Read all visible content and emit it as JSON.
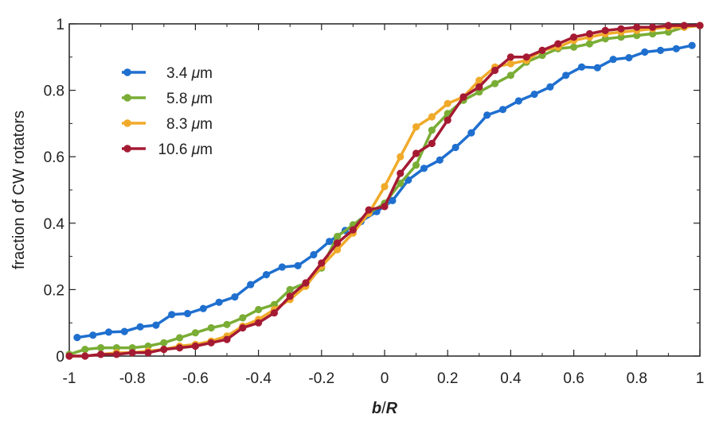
{
  "chart_data": {
    "type": "line",
    "title": "",
    "xlabel_main": "b",
    "xlabel_sep": "/",
    "xlabel_sub": "R",
    "ylabel": "fraction of CW rotators",
    "xlim": [
      -1,
      1
    ],
    "ylim": [
      0,
      1
    ],
    "x_ticks": [
      -1,
      -0.8,
      -0.6,
      -0.4,
      -0.2,
      0,
      0.2,
      0.4,
      0.6,
      0.8,
      1
    ],
    "x_tick_labels": [
      "-1",
      "-0.8",
      "-0.6",
      "-0.4",
      "-0.2",
      "0",
      "0.2",
      "0.4",
      "0.6",
      "0.8",
      "1"
    ],
    "y_ticks": [
      0,
      0.2,
      0.4,
      0.6,
      0.8,
      1
    ],
    "y_tick_labels": [
      "0",
      "0.2",
      "0.4",
      "0.6",
      "0.8",
      "1"
    ],
    "legend_position": "top-left",
    "series": [
      {
        "name": "3.4",
        "unit": "μm",
        "color": "#1f6fcf",
        "x": [
          -0.975,
          -0.925,
          -0.875,
          -0.825,
          -0.775,
          -0.725,
          -0.675,
          -0.625,
          -0.575,
          -0.525,
          -0.475,
          -0.425,
          -0.375,
          -0.325,
          -0.275,
          -0.225,
          -0.175,
          -0.125,
          -0.075,
          -0.025,
          0.025,
          0.075,
          0.125,
          0.175,
          0.225,
          0.275,
          0.325,
          0.375,
          0.425,
          0.475,
          0.525,
          0.575,
          0.625,
          0.675,
          0.725,
          0.775,
          0.825,
          0.875,
          0.925,
          0.975
        ],
        "values": [
          0.056,
          0.063,
          0.072,
          0.074,
          0.088,
          0.093,
          0.125,
          0.128,
          0.143,
          0.162,
          0.178,
          0.215,
          0.245,
          0.268,
          0.272,
          0.305,
          0.345,
          0.378,
          0.405,
          0.435,
          0.468,
          0.53,
          0.565,
          0.59,
          0.628,
          0.672,
          0.725,
          0.742,
          0.768,
          0.788,
          0.81,
          0.845,
          0.87,
          0.868,
          0.893,
          0.898,
          0.915,
          0.92,
          0.925,
          0.935
        ]
      },
      {
        "name": "5.8",
        "unit": "μm",
        "color": "#7aad35",
        "x": [
          -1.0,
          -0.95,
          -0.9,
          -0.85,
          -0.8,
          -0.75,
          -0.7,
          -0.65,
          -0.6,
          -0.55,
          -0.5,
          -0.45,
          -0.4,
          -0.35,
          -0.3,
          -0.25,
          -0.2,
          -0.15,
          -0.1,
          -0.05,
          0.0,
          0.05,
          0.1,
          0.15,
          0.2,
          0.25,
          0.3,
          0.35,
          0.4,
          0.45,
          0.5,
          0.55,
          0.6,
          0.65,
          0.7,
          0.75,
          0.8,
          0.85,
          0.9,
          0.95,
          1.0
        ],
        "values": [
          0.005,
          0.02,
          0.025,
          0.025,
          0.025,
          0.03,
          0.04,
          0.055,
          0.07,
          0.085,
          0.095,
          0.115,
          0.14,
          0.155,
          0.2,
          0.22,
          0.265,
          0.36,
          0.395,
          0.43,
          0.46,
          0.52,
          0.575,
          0.68,
          0.73,
          0.77,
          0.795,
          0.82,
          0.845,
          0.885,
          0.905,
          0.925,
          0.93,
          0.94,
          0.955,
          0.96,
          0.965,
          0.97,
          0.975,
          0.99,
          0.995
        ]
      },
      {
        "name": "8.3",
        "unit": "μm",
        "color": "#f0aa2a",
        "x": [
          -1.0,
          -0.95,
          -0.9,
          -0.85,
          -0.8,
          -0.75,
          -0.7,
          -0.65,
          -0.6,
          -0.55,
          -0.5,
          -0.45,
          -0.4,
          -0.35,
          -0.3,
          -0.25,
          -0.2,
          -0.15,
          -0.1,
          -0.05,
          0.0,
          0.05,
          0.1,
          0.15,
          0.2,
          0.25,
          0.3,
          0.35,
          0.4,
          0.45,
          0.5,
          0.55,
          0.6,
          0.65,
          0.7,
          0.75,
          0.8,
          0.85,
          0.9,
          0.95,
          1.0
        ],
        "values": [
          0.0,
          0.0,
          0.005,
          0.01,
          0.01,
          0.015,
          0.02,
          0.03,
          0.035,
          0.045,
          0.06,
          0.09,
          0.11,
          0.14,
          0.17,
          0.21,
          0.27,
          0.32,
          0.37,
          0.43,
          0.51,
          0.6,
          0.69,
          0.72,
          0.76,
          0.78,
          0.83,
          0.87,
          0.88,
          0.89,
          0.92,
          0.93,
          0.95,
          0.96,
          0.97,
          0.975,
          0.98,
          0.985,
          0.99,
          0.99,
          0.995
        ]
      },
      {
        "name": "10.6",
        "unit": "μm",
        "color": "#a51a33",
        "x": [
          -1.0,
          -0.95,
          -0.9,
          -0.85,
          -0.8,
          -0.75,
          -0.7,
          -0.65,
          -0.6,
          -0.55,
          -0.5,
          -0.45,
          -0.4,
          -0.35,
          -0.3,
          -0.25,
          -0.2,
          -0.15,
          -0.1,
          -0.05,
          0.0,
          0.05,
          0.1,
          0.15,
          0.2,
          0.25,
          0.3,
          0.35,
          0.4,
          0.45,
          0.5,
          0.55,
          0.6,
          0.65,
          0.7,
          0.75,
          0.8,
          0.85,
          0.9,
          0.95,
          1.0
        ],
        "values": [
          0.0,
          0.0,
          0.005,
          0.005,
          0.01,
          0.01,
          0.02,
          0.025,
          0.03,
          0.04,
          0.05,
          0.085,
          0.1,
          0.13,
          0.18,
          0.22,
          0.28,
          0.34,
          0.38,
          0.44,
          0.45,
          0.55,
          0.61,
          0.64,
          0.71,
          0.78,
          0.81,
          0.86,
          0.9,
          0.9,
          0.92,
          0.94,
          0.96,
          0.97,
          0.98,
          0.985,
          0.99,
          0.99,
          0.995,
          0.995,
          0.995
        ]
      }
    ]
  }
}
